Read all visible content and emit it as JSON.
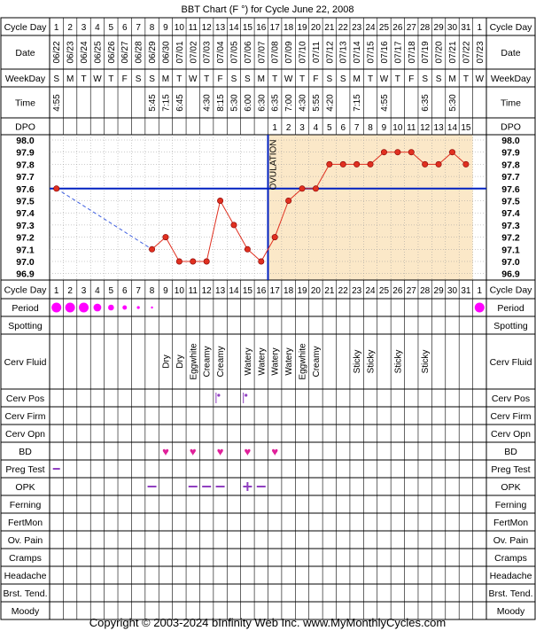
{
  "title": "BBT Chart (F °) for Cycle June 22, 2008",
  "footer": "Copyright © 2003-2024 bInfinity Web Inc.     www.MyMonthlyCycles.com",
  "colors": {
    "grid": "#000000",
    "pre_ovulation_bg": "#ffffff",
    "post_ovulation_bg": "#fbe8c8",
    "temp_line": "#e03020",
    "temp_point": "#e03020",
    "missing_line": "#4060e0",
    "coverline": "#0020c0",
    "ovulation_line": "#0020c0",
    "period": "#ff00ff",
    "bd_heart": "#e0209a",
    "opk": "#9040c0",
    "cerv_pos": "#9040c0"
  },
  "labels": {
    "cycle_day": "Cycle Day",
    "date": "Date",
    "weekday": "WeekDay",
    "time": "Time",
    "dpo": "DPO",
    "ovulation": "OVULATION",
    "period": "Period",
    "spotting": "Spotting",
    "cerv_fluid": "Cerv Fluid",
    "cerv_pos": "Cerv Pos",
    "cerv_firm": "Cerv Firm",
    "cerv_opn": "Cerv Opn",
    "bd": "BD",
    "preg_test": "Preg Test",
    "opk": "OPK",
    "ferning": "Ferning",
    "fertmon": "FertMon",
    "ov_pain": "Ov. Pain",
    "cramps": "Cramps",
    "headache": "Headache",
    "brst_tend": "Brst. Tend.",
    "moody": "Moody"
  },
  "chart_data": {
    "type": "line",
    "x_label": "Cycle Day",
    "cycle_days": [
      "1",
      "2",
      "3",
      "4",
      "5",
      "6",
      "7",
      "8",
      "9",
      "10",
      "11",
      "12",
      "13",
      "14",
      "15",
      "16",
      "17",
      "18",
      "19",
      "20",
      "21",
      "22",
      "23",
      "24",
      "25",
      "26",
      "27",
      "28",
      "29",
      "30",
      "31",
      "1"
    ],
    "dates": [
      "06/22",
      "06/23",
      "06/24",
      "06/25",
      "06/26",
      "06/27",
      "06/28",
      "06/29",
      "06/30",
      "07/01",
      "07/02",
      "07/03",
      "07/04",
      "07/05",
      "07/06",
      "07/07",
      "07/08",
      "07/09",
      "07/10",
      "07/11",
      "07/12",
      "07/13",
      "07/14",
      "07/15",
      "07/16",
      "07/17",
      "07/18",
      "07/19",
      "07/20",
      "07/21",
      "07/22",
      "07/23"
    ],
    "weekdays": [
      "S",
      "M",
      "T",
      "W",
      "T",
      "F",
      "S",
      "S",
      "M",
      "T",
      "W",
      "T",
      "F",
      "S",
      "S",
      "M",
      "T",
      "W",
      "T",
      "F",
      "S",
      "S",
      "M",
      "T",
      "W",
      "T",
      "F",
      "S",
      "S",
      "M",
      "T",
      "W"
    ],
    "times": [
      "4:55",
      "",
      "",
      "",
      "",
      "",
      "",
      "5:45",
      "7:15",
      "6:45",
      "",
      "4:30",
      "8:15",
      "5:30",
      "6:00",
      "6:30",
      "6:35",
      "7:00",
      "4:30",
      "5:55",
      "4:20",
      "",
      "7:15",
      "",
      "4:55",
      "",
      "",
      "6:35",
      "",
      "5:30",
      "",
      ""
    ],
    "dpo": [
      "",
      "",
      "",
      "",
      "",
      "",
      "",
      "",
      "",
      "",
      "",
      "",
      "",
      "",
      "",
      "",
      "1",
      "2",
      "3",
      "4",
      "5",
      "6",
      "7",
      "8",
      "9",
      "10",
      "11",
      "12",
      "13",
      "14",
      "15",
      ""
    ],
    "temperatures": [
      97.6,
      null,
      null,
      null,
      null,
      null,
      null,
      97.1,
      97.2,
      97.0,
      97.0,
      97.0,
      97.5,
      97.3,
      97.1,
      97.0,
      97.2,
      97.5,
      97.6,
      97.6,
      97.8,
      97.8,
      97.8,
      97.8,
      97.9,
      97.9,
      97.9,
      97.8,
      97.8,
      97.9,
      97.8,
      null
    ],
    "temp_axis_ticks": [
      "98.0",
      "97.9",
      "97.8",
      "97.7",
      "97.6",
      "97.5",
      "97.4",
      "97.3",
      "97.2",
      "97.1",
      "97.0",
      "96.9"
    ],
    "y_min": 96.9,
    "y_max": 98.0,
    "coverline": 97.6,
    "ovulation_day_index": 15,
    "fertility_shading_start_index": 16,
    "fertility_shading_end_index": 30,
    "period": [
      1.0,
      1.0,
      1.0,
      0.8,
      0.6,
      0.45,
      0.3,
      0.2,
      0,
      0,
      0,
      0,
      0,
      0,
      0,
      0,
      0,
      0,
      0,
      0,
      0,
      0,
      0,
      0,
      0,
      0,
      0,
      0,
      0,
      0,
      0,
      1.0
    ],
    "cerv_fluid": [
      "",
      "",
      "",
      "",
      "",
      "",
      "",
      "",
      "Dry",
      "Dry",
      "Eggwhite",
      "Creamy",
      "Creamy",
      "",
      "Watery",
      "Watery",
      "Watery",
      "Watery",
      "Eggwhite",
      "Creamy",
      "",
      "",
      "Sticky",
      "Sticky",
      "",
      "Sticky",
      "",
      "Sticky",
      "",
      "",
      "",
      ""
    ],
    "cerv_pos": [
      "",
      "",
      "",
      "",
      "",
      "",
      "",
      "",
      "",
      "",
      "",
      "",
      "dot",
      "",
      "dot",
      "",
      "",
      "",
      "",
      "",
      "",
      "",
      "",
      "",
      "",
      "",
      "",
      "",
      "",
      "",
      "",
      ""
    ],
    "bd": [
      false,
      false,
      false,
      false,
      false,
      false,
      false,
      false,
      true,
      false,
      true,
      false,
      true,
      false,
      true,
      false,
      true,
      false,
      false,
      false,
      false,
      false,
      false,
      false,
      false,
      false,
      false,
      false,
      false,
      false,
      false,
      false
    ],
    "preg_test": [
      "-",
      "",
      "",
      "",
      "",
      "",
      "",
      "",
      "",
      "",
      "",
      "",
      "",
      "",
      "",
      "",
      "",
      "",
      "",
      "",
      "",
      "",
      "",
      "",
      "",
      "",
      "",
      "",
      "",
      "",
      "",
      ""
    ],
    "opk": [
      "",
      "",
      "",
      "",
      "",
      "",
      "",
      "-",
      "",
      "",
      "-",
      "-",
      "-",
      "",
      "+",
      "-",
      "",
      "",
      "",
      "",
      "",
      "",
      "",
      "",
      "",
      "",
      "",
      "",
      "",
      "",
      "",
      ""
    ]
  }
}
